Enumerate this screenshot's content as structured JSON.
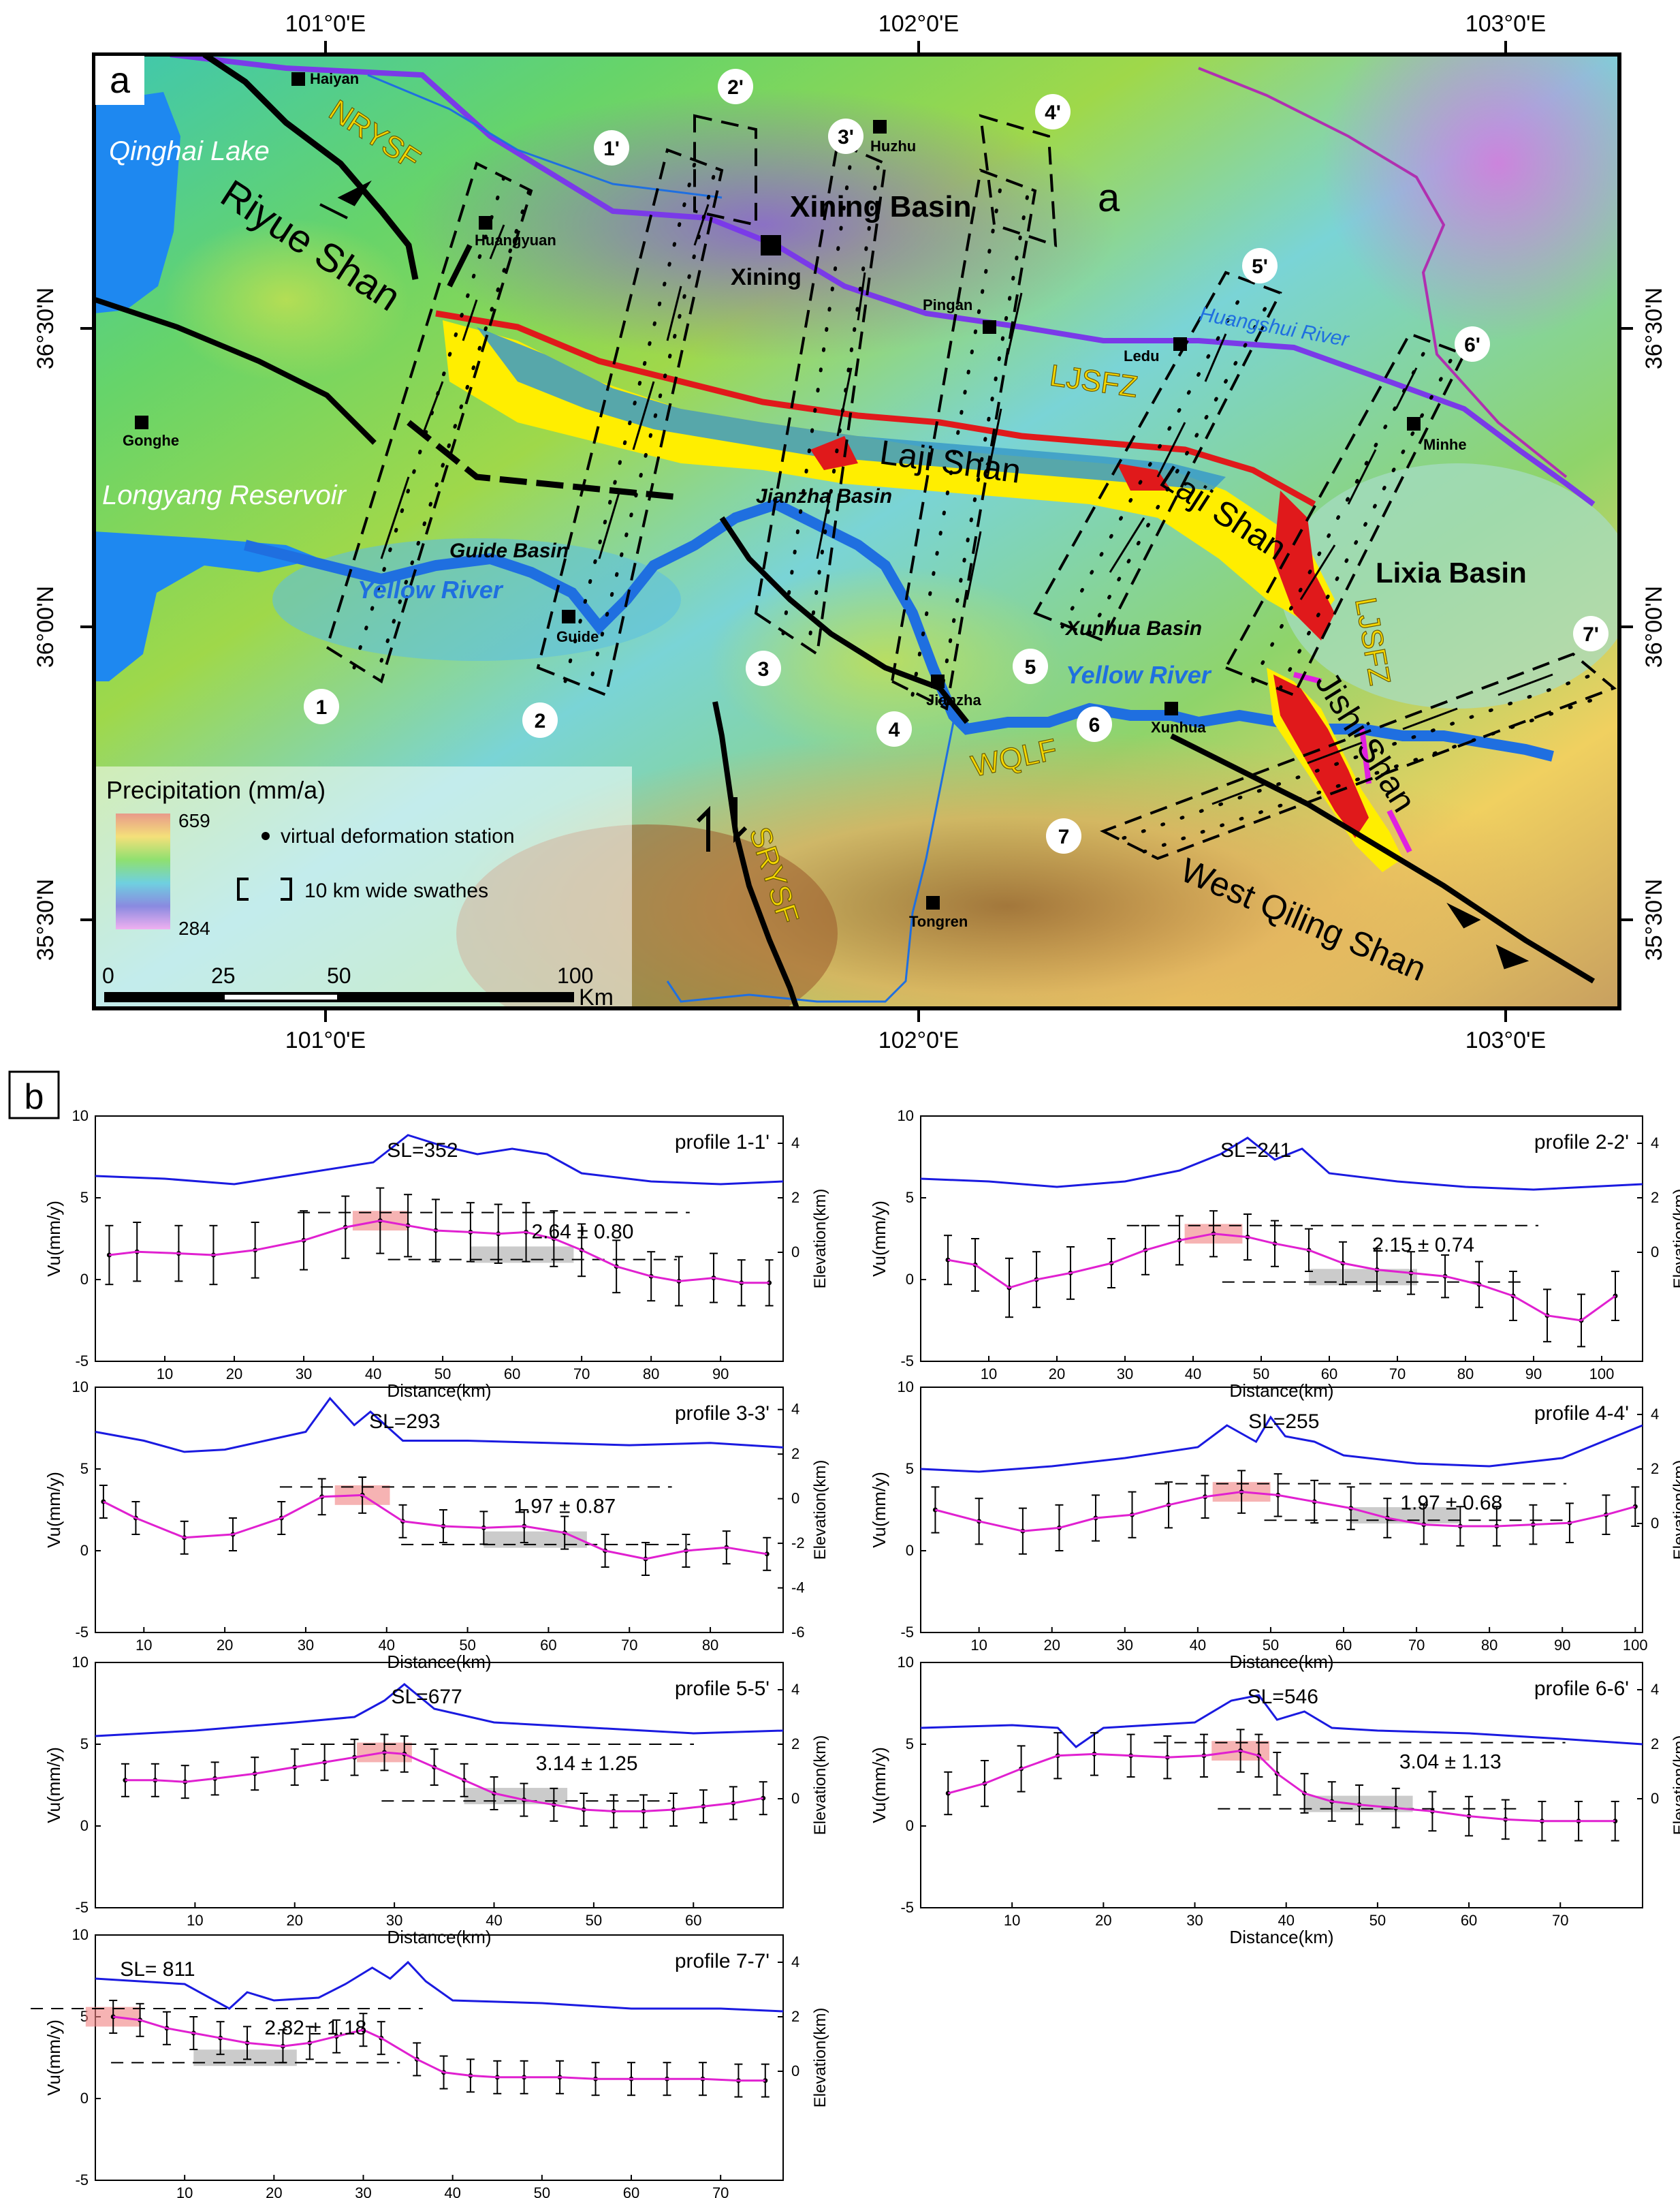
{
  "map": {
    "panel_letter": "a",
    "lon_ticks": [
      "101°0'E",
      "102°0'E",
      "103°0'E"
    ],
    "lat_ticks": [
      "36°30'N",
      "36°00'N",
      "35°30'N"
    ],
    "places": {
      "haiyan": "Haiyan",
      "huangyuan": "Huangyuan",
      "huzhu": "Huzhu",
      "xining": "Xining",
      "pingan": "Pingan",
      "ledu": "Ledu",
      "minhe": "Minhe",
      "gonghe": "Gonghe",
      "guide": "Guide",
      "jianzha": "Jianzha",
      "xunhua": "Xunhua",
      "tongren": "Tongren"
    },
    "regions": {
      "qinghai_lake": "Qinghai Lake",
      "longyang": "Longyang Reservoir",
      "riyue_shan": "Riyue Shan",
      "xining_basin": "Xining Basin",
      "xining_basin_a": "a",
      "laji_shan_1": "Laji Shan",
      "laji_shan_2": "Laji Shan",
      "lixia_basin": "Lixia Basin",
      "guide_basin": "Guide Basin",
      "jianzha_basin": "Jianzha Basin",
      "xunhua_basin": "Xunhua Basin",
      "jishi_shan": "Jishi Shan",
      "west_qiling_shan": "West Qiling Shan",
      "yellow_river_1": "Yellow River",
      "yellow_river_2": "Yellow River",
      "huangshui_river": "Huangshui River"
    },
    "faults": {
      "nrysf": "NRYSF",
      "ljsfz_1": "LJSFZ",
      "ljsfz_2": "LJSFZ",
      "wqlf": "WQLF",
      "srysf": "SRYSF"
    },
    "profile_labels": {
      "p1": "1",
      "p1e": "1'",
      "p2": "2",
      "p2e": "2'",
      "p3": "3",
      "p3e": "3'",
      "p4": "4",
      "p4e": "4'",
      "p5": "5",
      "p5e": "5'",
      "p6": "6",
      "p6e": "6'",
      "p7": "7",
      "p7e": "7'"
    },
    "legend": {
      "title": "Precipitation (mm/a)",
      "max_value": "659",
      "min_value": "284",
      "station": "virtual deformation station",
      "swath": "10 km wide swathes"
    },
    "scalebar": {
      "ticks": [
        "0",
        "25",
        "50",
        "100"
      ],
      "unit": "Km"
    },
    "colors": {
      "river": "#1f6fe0",
      "fault": "#000000",
      "red_unit": "#e0191b",
      "yellow_unit": "#ffee00",
      "topo_low": "#2ab5c8",
      "topo_high": "#ffe070"
    }
  },
  "panel_b_letter": "b",
  "chart_data": [
    {
      "type": "line",
      "name": "profile 1-1'",
      "sl": "SL=352",
      "rate": "2.64 ± 0.80",
      "xlabel": "Distance(km)",
      "ylabel": "Vu(mm/y)",
      "y2label": "Elevation(km)",
      "xlim": [
        0,
        99
      ],
      "ylim": [
        -5,
        10
      ],
      "xticks": [
        10,
        20,
        30,
        40,
        50,
        60,
        70,
        80,
        90
      ],
      "yticks": [
        -5,
        0,
        5,
        10
      ],
      "y2ticks": [
        4,
        2,
        0
      ],
      "elev_range": [
        -4,
        5
      ],
      "series": [
        {
          "name": "Vu",
          "x": [
            2,
            6,
            12,
            17,
            23,
            30,
            36,
            41,
            45,
            49,
            54,
            58,
            62,
            66,
            70,
            75,
            80,
            84,
            89,
            93,
            97
          ],
          "y": [
            1.5,
            1.7,
            1.6,
            1.5,
            1.8,
            2.4,
            3.2,
            3.6,
            3.3,
            3.0,
            2.9,
            2.8,
            2.9,
            2.5,
            1.8,
            0.8,
            0.2,
            -0.1,
            0.1,
            -0.2,
            -0.2
          ],
          "err": [
            1.8,
            1.8,
            1.7,
            1.8,
            1.7,
            1.8,
            1.9,
            2.0,
            1.9,
            1.9,
            1.8,
            1.8,
            1.8,
            1.7,
            1.6,
            1.6,
            1.5,
            1.5,
            1.5,
            1.4,
            1.4
          ]
        },
        {
          "name": "Elevation",
          "x": [
            0,
            10,
            20,
            30,
            40,
            45,
            50,
            55,
            60,
            65,
            70,
            80,
            90,
            99
          ],
          "y": [
            2.8,
            2.7,
            2.5,
            2.9,
            3.3,
            4.3,
            3.9,
            3.6,
            3.8,
            3.6,
            2.9,
            2.6,
            2.5,
            2.6
          ]
        }
      ]
    },
    {
      "type": "line",
      "name": "profile 2-2'",
      "sl": "SL=241",
      "rate": "2.15 ± 0.74",
      "xlabel": "Distance(km)",
      "ylabel": "Vu(mm/y)",
      "y2label": "Elevation(km)",
      "xlim": [
        0,
        106
      ],
      "ylim": [
        -5,
        10
      ],
      "xticks": [
        10,
        20,
        30,
        40,
        50,
        60,
        70,
        80,
        90,
        100
      ],
      "yticks": [
        -5,
        0,
        5,
        10
      ],
      "y2ticks": [
        4,
        2,
        0
      ],
      "elev_range": [
        -4,
        5
      ],
      "series": [
        {
          "name": "Vu",
          "x": [
            4,
            8,
            13,
            17,
            22,
            28,
            33,
            38,
            43,
            48,
            52,
            57,
            62,
            67,
            72,
            77,
            82,
            87,
            92,
            97,
            102
          ],
          "y": [
            1.2,
            0.9,
            -0.5,
            0.0,
            0.4,
            1.0,
            1.8,
            2.4,
            2.8,
            2.6,
            2.2,
            1.8,
            1.0,
            0.6,
            0.4,
            0.2,
            -0.3,
            -1.0,
            -2.2,
            -2.5,
            -1.0
          ],
          "err": [
            1.5,
            1.6,
            1.8,
            1.7,
            1.6,
            1.5,
            1.5,
            1.5,
            1.4,
            1.4,
            1.4,
            1.3,
            1.3,
            1.3,
            1.3,
            1.3,
            1.4,
            1.5,
            1.6,
            1.6,
            1.5
          ]
        },
        {
          "name": "Elevation",
          "x": [
            0,
            10,
            20,
            30,
            38,
            44,
            48,
            52,
            56,
            60,
            70,
            80,
            90,
            106
          ],
          "y": [
            2.7,
            2.6,
            2.4,
            2.6,
            3.0,
            3.6,
            4.2,
            3.4,
            3.8,
            2.9,
            2.6,
            2.4,
            2.3,
            2.5
          ]
        }
      ]
    },
    {
      "type": "line",
      "name": "profile 3-3'",
      "sl": "SL=293",
      "rate": "1.97 ± 0.87",
      "xlabel": "Distance(km)",
      "ylabel": "Vu(mm/y)",
      "y2label": "Elevation(km)",
      "xlim": [
        4,
        89
      ],
      "ylim": [
        -5,
        10
      ],
      "xticks": [
        10,
        20,
        30,
        40,
        50,
        60,
        70,
        80
      ],
      "yticks": [
        -5,
        0,
        5,
        10
      ],
      "y2ticks": [
        4,
        2,
        0,
        -2,
        -4,
        -6
      ],
      "elev_range": [
        -6,
        5
      ],
      "series": [
        {
          "name": "Vu",
          "x": [
            5,
            9,
            15,
            21,
            27,
            32,
            37,
            42,
            47,
            52,
            57,
            62,
            67,
            72,
            77,
            82,
            87
          ],
          "y": [
            3.0,
            2.0,
            0.8,
            1.0,
            2.0,
            3.3,
            3.4,
            1.8,
            1.5,
            1.4,
            1.5,
            1.1,
            0.0,
            -0.5,
            0.0,
            0.2,
            -0.2
          ],
          "err": [
            1.0,
            1.0,
            1.0,
            1.0,
            1.0,
            1.1,
            1.1,
            1.0,
            1.0,
            1.0,
            1.0,
            1.0,
            1.0,
            1.0,
            1.0,
            1.0,
            1.0
          ]
        },
        {
          "name": "Elevation",
          "x": [
            4,
            10,
            15,
            20,
            25,
            30,
            33,
            36,
            38,
            42,
            50,
            60,
            70,
            80,
            89
          ],
          "y": [
            3.0,
            2.6,
            2.1,
            2.2,
            2.6,
            3.0,
            4.5,
            3.3,
            3.9,
            2.6,
            2.6,
            2.5,
            2.4,
            2.5,
            2.3
          ]
        }
      ]
    },
    {
      "type": "line",
      "name": "profile 4-4'",
      "sl": "SL=255",
      "rate": "1.97 ± 0.68",
      "xlabel": "Distance(km)",
      "ylabel": "Vu(mm/y)",
      "y2label": "Elevation(km)",
      "xlim": [
        2,
        101
      ],
      "ylim": [
        -5,
        10
      ],
      "xticks": [
        10,
        20,
        30,
        40,
        50,
        60,
        70,
        80,
        90,
        100
      ],
      "yticks": [
        -5,
        0,
        5,
        10
      ],
      "y2ticks": [
        4,
        2,
        0
      ],
      "elev_range": [
        -4,
        5
      ],
      "series": [
        {
          "name": "Vu",
          "x": [
            4,
            10,
            16,
            21,
            26,
            31,
            36,
            41,
            46,
            51,
            56,
            61,
            66,
            71,
            76,
            81,
            86,
            91,
            96,
            100
          ],
          "y": [
            2.5,
            1.8,
            1.2,
            1.4,
            2.0,
            2.2,
            2.8,
            3.3,
            3.6,
            3.4,
            3.0,
            2.6,
            2.0,
            1.6,
            1.5,
            1.5,
            1.6,
            1.7,
            2.2,
            2.7
          ],
          "err": [
            1.4,
            1.4,
            1.4,
            1.4,
            1.4,
            1.4,
            1.4,
            1.3,
            1.3,
            1.3,
            1.3,
            1.3,
            1.2,
            1.2,
            1.2,
            1.2,
            1.2,
            1.2,
            1.2,
            1.2
          ]
        },
        {
          "name": "Elevation",
          "x": [
            2,
            10,
            20,
            30,
            40,
            44,
            48,
            50,
            52,
            56,
            60,
            70,
            80,
            90,
            101
          ],
          "y": [
            2.0,
            1.9,
            2.1,
            2.4,
            2.8,
            3.6,
            3.0,
            3.9,
            3.2,
            3.0,
            2.5,
            2.2,
            2.1,
            2.4,
            3.6
          ]
        }
      ]
    },
    {
      "type": "line",
      "name": "profile 5-5'",
      "sl": "SL=677",
      "rate": "3.14 ± 1.25",
      "xlabel": "Distance(km)",
      "ylabel": "Vu(mm/y)",
      "y2label": "Elevation(km)",
      "xlim": [
        0,
        69
      ],
      "ylim": [
        -5,
        10
      ],
      "xticks": [
        10,
        20,
        30,
        40,
        50,
        60
      ],
      "yticks": [
        -5,
        0,
        5,
        10
      ],
      "y2ticks": [
        4,
        2,
        0
      ],
      "elev_range": [
        -4,
        5
      ],
      "series": [
        {
          "name": "Vu",
          "x": [
            3,
            6,
            9,
            12,
            16,
            20,
            23,
            26,
            29,
            31,
            34,
            37,
            40,
            43,
            46,
            49,
            52,
            55,
            58,
            61,
            64,
            67
          ],
          "y": [
            2.8,
            2.8,
            2.7,
            2.9,
            3.2,
            3.6,
            3.9,
            4.2,
            4.5,
            4.4,
            3.6,
            2.8,
            2.0,
            1.6,
            1.3,
            1.0,
            0.9,
            0.9,
            1.0,
            1.2,
            1.4,
            1.7
          ],
          "err": [
            1.0,
            1.0,
            1.0,
            1.0,
            1.0,
            1.1,
            1.1,
            1.1,
            1.1,
            1.1,
            1.1,
            1.0,
            1.0,
            1.0,
            1.0,
            1.0,
            1.0,
            1.0,
            1.0,
            1.0,
            1.0,
            1.0
          ]
        },
        {
          "name": "Elevation",
          "x": [
            0,
            10,
            20,
            26,
            29,
            31,
            34,
            40,
            50,
            60,
            69
          ],
          "y": [
            2.3,
            2.5,
            2.8,
            3.0,
            3.6,
            4.2,
            3.3,
            2.8,
            2.6,
            2.4,
            2.5
          ]
        }
      ]
    },
    {
      "type": "line",
      "name": "profile 6-6'",
      "sl": "SL=546",
      "rate": "3.04 ± 1.13",
      "xlabel": "Distance(km)",
      "ylabel": "Vu(mm/y)",
      "y2label": "Elevation(km)",
      "xlim": [
        0,
        79
      ],
      "ylim": [
        -5,
        10
      ],
      "xticks": [
        10,
        20,
        30,
        40,
        50,
        60,
        70
      ],
      "yticks": [
        -5,
        0,
        5,
        10
      ],
      "y2ticks": [
        4,
        2,
        0
      ],
      "elev_range": [
        -4,
        5
      ],
      "series": [
        {
          "name": "Vu",
          "x": [
            3,
            7,
            11,
            15,
            19,
            23,
            27,
            31,
            35,
            37,
            39,
            42,
            45,
            48,
            52,
            56,
            60,
            64,
            68,
            72,
            76
          ],
          "y": [
            2.0,
            2.6,
            3.5,
            4.3,
            4.4,
            4.3,
            4.2,
            4.3,
            4.6,
            4.3,
            3.2,
            2.0,
            1.5,
            1.3,
            1.1,
            0.9,
            0.6,
            0.4,
            0.3,
            0.3,
            0.3
          ],
          "err": [
            1.3,
            1.4,
            1.4,
            1.4,
            1.3,
            1.3,
            1.3,
            1.3,
            1.3,
            1.3,
            1.3,
            1.2,
            1.2,
            1.2,
            1.2,
            1.2,
            1.2,
            1.2,
            1.2,
            1.2,
            1.2
          ]
        },
        {
          "name": "Elevation",
          "x": [
            0,
            10,
            15,
            17,
            20,
            30,
            34,
            37,
            39,
            42,
            45,
            50,
            60,
            70,
            79
          ],
          "y": [
            2.6,
            2.7,
            2.6,
            1.9,
            2.6,
            2.8,
            3.6,
            3.8,
            2.9,
            3.2,
            2.6,
            2.5,
            2.4,
            2.2,
            2.0
          ]
        }
      ]
    },
    {
      "type": "line",
      "name": "profile 7-7'",
      "sl": "SL= 811",
      "rate": "2.82 ± 1.18",
      "xlabel": "Distance(km)",
      "ylabel": "Vu(mm/y)",
      "y2label": "Elevation(km)",
      "xlim": [
        0,
        77
      ],
      "ylim": [
        -5,
        10
      ],
      "xticks": [
        10,
        20,
        30,
        40,
        50,
        60,
        70
      ],
      "yticks": [
        -5,
        0,
        5,
        10
      ],
      "y2ticks": [
        4,
        2,
        0
      ],
      "elev_range": [
        -4,
        5
      ],
      "series": [
        {
          "name": "Vu",
          "x": [
            2,
            5,
            8,
            11,
            14,
            17,
            21,
            24,
            27,
            30,
            32,
            36,
            39,
            42,
            45,
            48,
            52,
            56,
            60,
            64,
            68,
            72,
            75
          ],
          "y": [
            5.0,
            4.8,
            4.3,
            4.0,
            3.7,
            3.4,
            3.2,
            3.4,
            3.8,
            4.2,
            3.7,
            2.4,
            1.6,
            1.4,
            1.3,
            1.3,
            1.3,
            1.2,
            1.2,
            1.2,
            1.2,
            1.1,
            1.1
          ],
          "err": [
            1.0,
            1.0,
            1.0,
            1.0,
            1.0,
            1.0,
            1.0,
            1.0,
            1.0,
            1.0,
            1.0,
            1.0,
            1.0,
            1.0,
            1.0,
            1.0,
            1.0,
            1.0,
            1.0,
            1.0,
            1.0,
            1.0,
            1.0
          ]
        },
        {
          "name": "Elevation",
          "x": [
            0,
            10,
            15,
            17,
            20,
            25,
            28,
            31,
            33,
            35,
            37,
            40,
            50,
            60,
            70,
            77
          ],
          "y": [
            3.4,
            3.2,
            2.3,
            2.9,
            2.6,
            2.7,
            3.2,
            3.8,
            3.4,
            4.0,
            3.3,
            2.6,
            2.5,
            2.3,
            2.3,
            2.2
          ]
        }
      ]
    }
  ]
}
